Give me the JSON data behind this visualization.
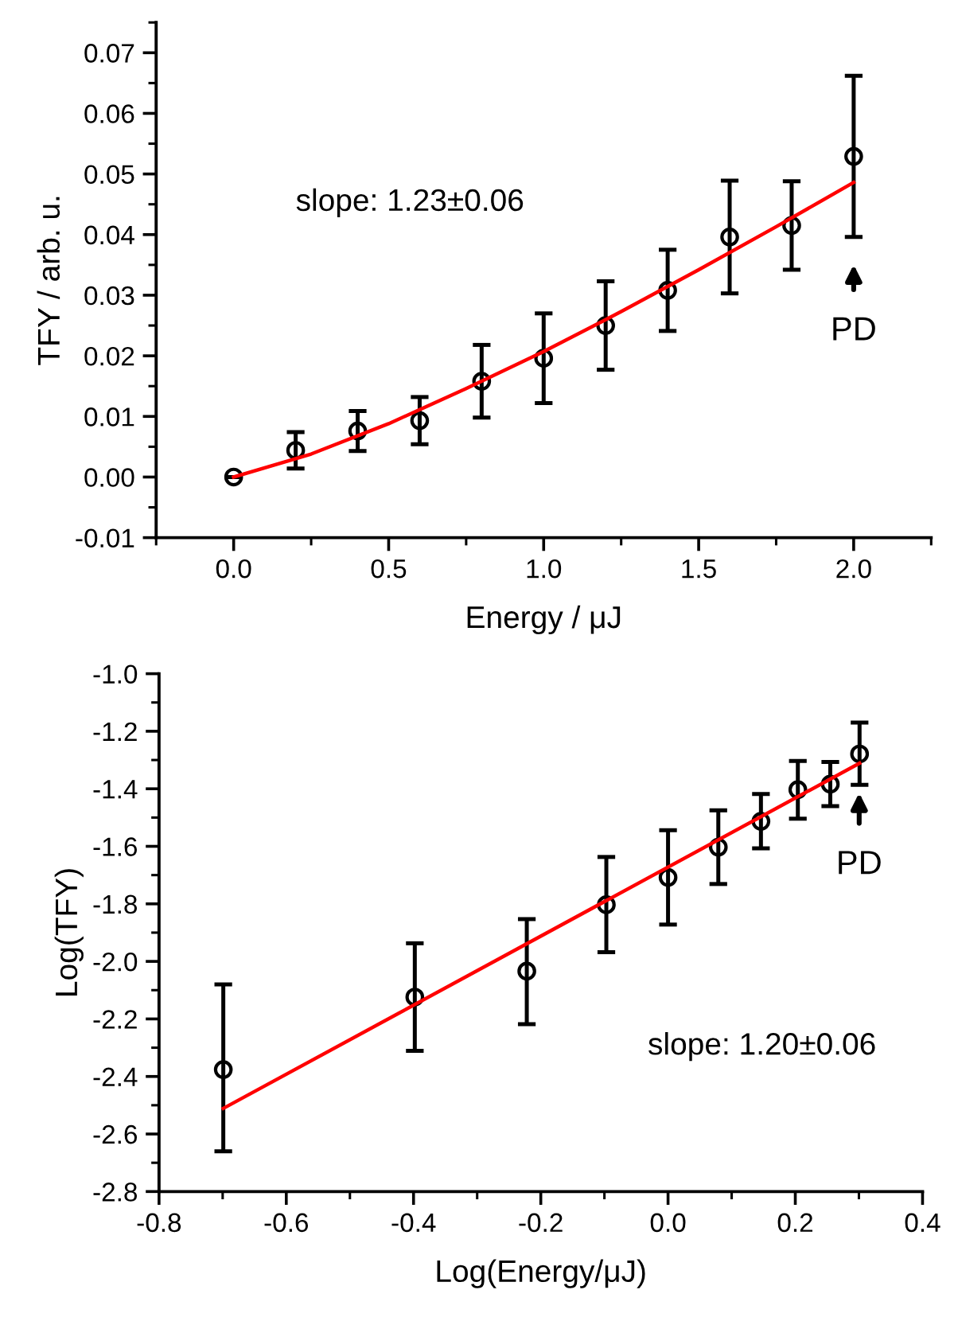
{
  "chart_data": [
    {
      "type": "scatter",
      "xlabel": "Energy / μJ",
      "ylabel": "TFY / arb. u.",
      "xlim": [
        -0.25,
        2.25
      ],
      "ylim": [
        -0.01,
        0.075
      ],
      "xticks": [
        {
          "value": 0,
          "label": "0.0"
        },
        0.5,
        {
          "value": 1,
          "label": "1.0"
        },
        1.5,
        {
          "value": 2,
          "label": "2.0"
        }
      ],
      "yticks": [
        -0.01,
        {
          "value": 0,
          "label": "0.00"
        },
        0.01,
        0.02,
        0.03,
        0.04,
        0.05,
        0.06,
        0.07
      ],
      "marker": "circle",
      "annotations": [
        "slope: 1.23±0.06",
        "PD"
      ],
      "series": [
        {
          "color": "#000000",
          "x": [
            0,
            0.2,
            0.4,
            0.6,
            0.8,
            1.0,
            1.2,
            1.4,
            1.6,
            1.8,
            2.0
          ],
          "values": [
            0.0,
            0.0044,
            0.0076,
            0.0093,
            0.0158,
            0.0196,
            0.025,
            0.0308,
            0.0396,
            0.0415,
            0.0529
          ],
          "errors": [
            null,
            0.003,
            0.0033,
            0.0039,
            0.006,
            0.0074,
            0.0073,
            0.0067,
            0.0093,
            0.0073,
            0.0133
          ]
        },
        {
          "type": "line",
          "color": "#ff0000",
          "marker": "none",
          "x": [
            0,
            0.25,
            0.5,
            0.75,
            1.0,
            1.25,
            1.5,
            1.75,
            2.0
          ],
          "values": [
            0.0,
            0.0038,
            0.0088,
            0.0146,
            0.0207,
            0.0273,
            0.0342,
            0.0413,
            0.0486
          ]
        }
      ]
    },
    {
      "type": "scatter",
      "xlabel": "Log(Energy/μJ)",
      "ylabel": "Log(TFY)",
      "xlim": [
        -0.8,
        0.4
      ],
      "ylim": [
        -2.8,
        -1.0
      ],
      "xticks": [
        -0.8,
        -0.6,
        -0.4,
        -0.2,
        {
          "value": 0,
          "label": "0.0"
        },
        0.2,
        0.4
      ],
      "yticks": [
        -2.8,
        -2.6,
        -2.4,
        -2.2,
        {
          "value": -2,
          "label": "-2.0"
        },
        -1.8,
        -1.6,
        -1.4,
        -1.2,
        {
          "value": -1,
          "label": "-1.0"
        }
      ],
      "marker": "circle",
      "annotations": [
        "slope: 1.20±0.06",
        "PD"
      ],
      "series": [
        {
          "color": "#000000",
          "x": [
            -0.699,
            -0.398,
            -0.222,
            -0.097,
            0.0,
            0.079,
            0.146,
            0.204,
            0.255,
            0.301
          ],
          "values": [
            -2.376,
            -2.124,
            -2.034,
            -1.803,
            -1.708,
            -1.603,
            -1.513,
            -1.403,
            -1.384,
            -1.279
          ],
          "errors": [
            [
              -2.66,
              -2.08
            ],
            [
              -2.311,
              -1.937
            ],
            [
              -2.218,
              -1.853
            ],
            [
              -1.968,
              -1.637
            ],
            [
              -1.872,
              -1.544
            ],
            [
              -1.731,
              -1.475
            ],
            [
              -1.607,
              -1.418
            ],
            [
              -1.504,
              -1.303
            ],
            [
              -1.46,
              -1.307
            ],
            [
              -1.386,
              -1.17
            ]
          ]
        },
        {
          "type": "line",
          "color": "#ff0000",
          "marker": "none",
          "x": [
            -0.699,
            0.301
          ],
          "values": [
            -2.511,
            -1.311
          ]
        }
      ]
    }
  ]
}
